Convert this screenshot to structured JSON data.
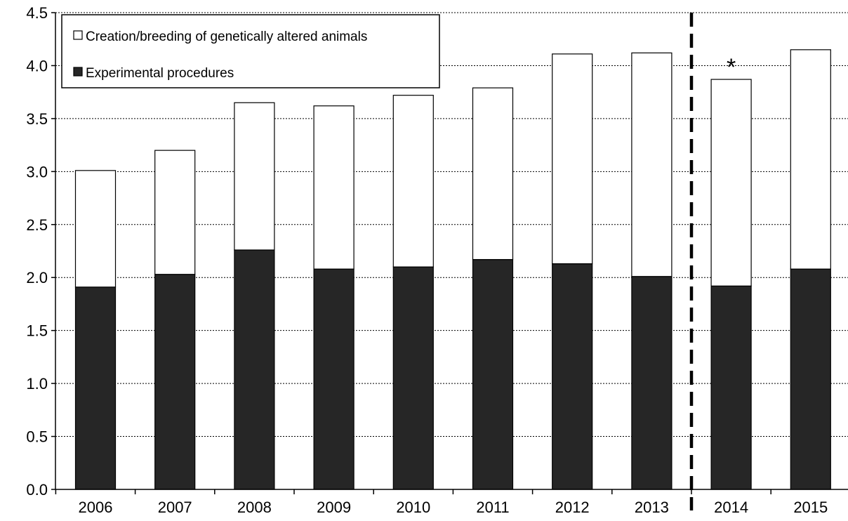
{
  "chart_data": {
    "type": "bar",
    "stacked": true,
    "categories": [
      "2006",
      "2007",
      "2008",
      "2009",
      "2010",
      "2011",
      "2012",
      "2013",
      "2014",
      "2015"
    ],
    "series": [
      {
        "name": "Experimental procedures",
        "values": [
          1.91,
          2.03,
          2.26,
          2.08,
          2.1,
          2.17,
          2.13,
          2.01,
          1.92,
          2.08
        ],
        "color": "#262626"
      },
      {
        "name": "Creation/breeding of genetically altered animals",
        "values": [
          1.1,
          1.17,
          1.39,
          1.54,
          1.62,
          1.62,
          1.98,
          2.11,
          1.95,
          2.07
        ],
        "color": "#ffffff"
      }
    ],
    "title": "",
    "xlabel": "",
    "ylabel": "",
    "ylim": [
      0,
      4.5
    ],
    "yticks": [
      "0.0",
      "0.5",
      "1.0",
      "1.5",
      "2.0",
      "2.5",
      "3.0",
      "3.5",
      "4.0",
      "4.5"
    ],
    "grid": true,
    "legend_position": "top-left",
    "annotation": {
      "text": "*",
      "category": "2014"
    },
    "divider_between": [
      "2013",
      "2014"
    ]
  }
}
